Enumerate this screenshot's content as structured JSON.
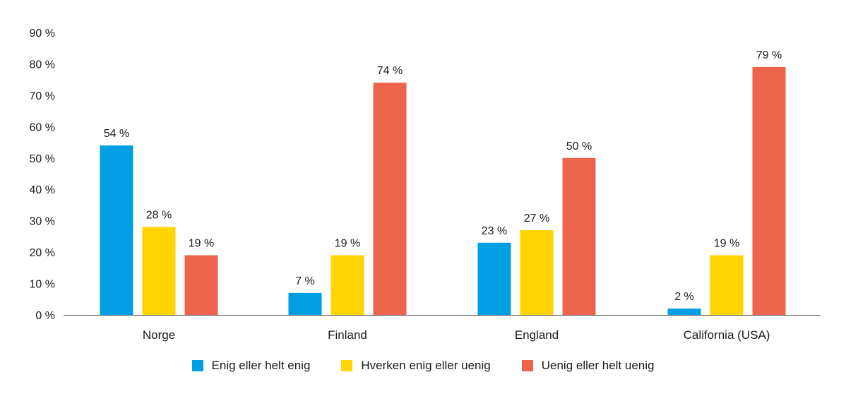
{
  "chart_data": {
    "type": "bar",
    "title": "",
    "xlabel": "",
    "ylabel": "",
    "categories": [
      "Norge",
      "Finland",
      "England",
      "California (USA)"
    ],
    "series": [
      {
        "name": "Enig eller helt enig",
        "color": "#009fe3",
        "values": [
          54,
          7,
          23,
          2
        ],
        "labels": [
          "54 %",
          "7 %",
          "23 %",
          "2 %"
        ]
      },
      {
        "name": "Hverken enig eller uenig",
        "color": "#ffd400",
        "values": [
          28,
          19,
          27,
          19
        ],
        "labels": [
          "28 %",
          "19 %",
          "27 %",
          "19 %"
        ]
      },
      {
        "name": "Uenig eller helt uenig",
        "color": "#ec644b",
        "values": [
          19,
          74,
          50,
          79
        ],
        "labels": [
          "19 %",
          "74 %",
          "50 %",
          "79 %"
        ]
      }
    ],
    "ylim": [
      0,
      90
    ],
    "yticks": [
      0,
      10,
      20,
      30,
      40,
      50,
      60,
      70,
      80,
      90
    ],
    "ytick_labels": [
      "0 %",
      "10 %",
      "20 %",
      "30 %",
      "40 %",
      "50 %",
      "60 %",
      "70 %",
      "80 %",
      "90 %"
    ],
    "grid": false,
    "legend_position": "bottom"
  }
}
